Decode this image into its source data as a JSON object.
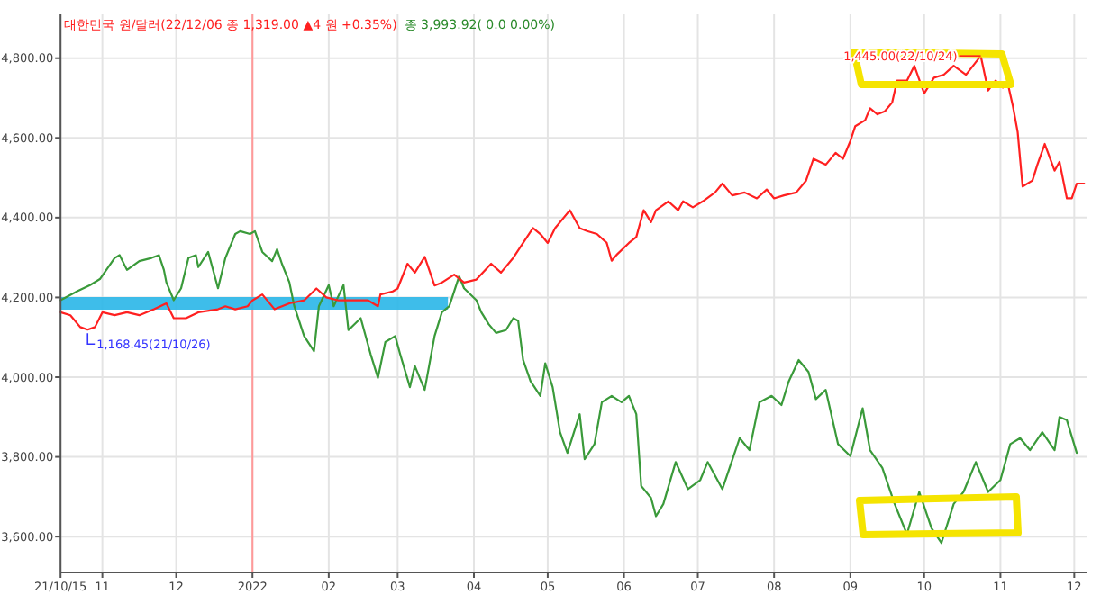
{
  "chart_data": {
    "type": "line",
    "title": "대한민국 원/달러(22/12/06 종 1,319.00 ▲4 원 +0.35%)",
    "subtitle": "종 3,993.92( 0.0 0.00%)",
    "y2lim": [
      923,
      1487
    ],
    "xlim": [
      "2021-10-15",
      "2022-12-06"
    ],
    "xticks": [
      {
        "value": "2021-10-15",
        "label": "21/10/15"
      },
      {
        "value": "2021-11-01",
        "label": "11"
      },
      {
        "value": "2021-12-01",
        "label": "12"
      },
      {
        "value": "2022-01-01",
        "label": "2022"
      },
      {
        "value": "2022-02-01",
        "label": "02"
      },
      {
        "value": "2022-03-01",
        "label": "03"
      },
      {
        "value": "2022-04-01",
        "label": "04"
      },
      {
        "value": "2022-05-01",
        "label": "05"
      },
      {
        "value": "2022-06-01",
        "label": "06"
      },
      {
        "value": "2022-07-01",
        "label": "07"
      },
      {
        "value": "2022-08-01",
        "label": "08"
      },
      {
        "value": "2022-09-01",
        "label": "09"
      },
      {
        "value": "2022-10-01",
        "label": "10"
      },
      {
        "value": "2022-11-01",
        "label": "11"
      },
      {
        "value": "2022-12-01",
        "label": "12"
      }
    ],
    "ylim": [
      3510,
      4910
    ],
    "yticks": [
      {
        "value": 3600,
        "label": "3,600.00"
      },
      {
        "value": 3800,
        "label": "3,800.00"
      },
      {
        "value": 4000,
        "label": "4,000.00"
      },
      {
        "value": 4200,
        "label": "4,200.00"
      },
      {
        "value": 4400,
        "label": "4,400.00"
      },
      {
        "value": 4600,
        "label": "4,600.00"
      },
      {
        "value": 4800,
        "label": "4,800.00"
      }
    ],
    "grid": true,
    "ref_lines": [
      {
        "axis": "x",
        "value": "2022-01-01",
        "color": "#ff9999"
      }
    ],
    "series": [
      {
        "color": "#3a9a3a",
        "x": [
          "2021-10-15",
          "2021-10-22",
          "2021-10-27",
          "2021-10-31",
          "2021-11-06",
          "2021-11-08",
          "2021-11-11",
          "2021-11-16",
          "2021-11-21",
          "2021-11-24",
          "2021-11-26",
          "2021-11-27",
          "2021-11-30",
          "2021-12-03",
          "2021-12-06",
          "2021-12-09",
          "2021-12-10",
          "2021-12-14",
          "2021-12-18",
          "2021-12-21",
          "2021-12-25",
          "2021-12-27",
          "2021-12-31",
          "2022-01-02",
          "2022-01-05",
          "2022-01-09",
          "2022-01-11",
          "2022-01-13",
          "2022-01-16",
          "2022-01-18",
          "2022-01-22",
          "2022-01-26",
          "2022-01-28",
          "2022-02-01",
          "2022-02-03",
          "2022-02-07",
          "2022-02-09",
          "2022-02-14",
          "2022-02-18",
          "2022-02-21",
          "2022-02-24",
          "2022-02-28",
          "2022-03-02",
          "2022-03-06",
          "2022-03-08",
          "2022-03-12",
          "2022-03-16",
          "2022-03-19",
          "2022-03-22",
          "2022-03-26",
          "2022-03-28",
          "2022-04-02",
          "2022-04-04",
          "2022-04-07",
          "2022-04-10",
          "2022-04-14",
          "2022-04-17",
          "2022-04-19",
          "2022-04-21",
          "2022-04-24",
          "2022-04-28",
          "2022-04-30",
          "2022-05-03",
          "2022-05-06",
          "2022-05-09",
          "2022-05-14",
          "2022-05-16",
          "2022-05-20",
          "2022-05-23",
          "2022-05-27",
          "2022-05-31",
          "2022-06-03",
          "2022-06-06",
          "2022-06-08",
          "2022-06-12",
          "2022-06-14",
          "2022-06-17",
          "2022-06-22",
          "2022-06-27",
          "2022-07-02",
          "2022-07-05",
          "2022-07-11",
          "2022-07-18",
          "2022-07-22",
          "2022-07-26",
          "2022-07-31",
          "2022-08-04",
          "2022-08-07",
          "2022-08-11",
          "2022-08-15",
          "2022-08-18",
          "2022-08-22",
          "2022-08-27",
          "2022-09-01",
          "2022-09-06",
          "2022-09-09",
          "2022-09-14",
          "2022-09-19",
          "2022-09-24",
          "2022-09-29",
          "2022-10-04",
          "2022-10-08",
          "2022-10-13",
          "2022-10-17",
          "2022-10-22",
          "2022-10-27",
          "2022-11-01",
          "2022-11-05",
          "2022-11-09",
          "2022-11-13",
          "2022-11-18",
          "2022-11-23",
          "2022-11-25",
          "2022-11-28",
          "2022-12-02"
        ],
        "values": [
          4193,
          4216,
          4231,
          4246,
          4299,
          4306,
          4269,
          4291,
          4299,
          4306,
          4269,
          4238,
          4193,
          4223,
          4299,
          4306,
          4276,
          4314,
          4223,
          4299,
          4359,
          4366,
          4359,
          4366,
          4314,
          4291,
          4321,
          4284,
          4238,
          4178,
          4103,
          4065,
          4178,
          4231,
          4178,
          4231,
          4118,
          4148,
          4058,
          3998,
          4088,
          4103,
          4058,
          3975,
          4028,
          3968,
          4103,
          4163,
          4178,
          4253,
          4223,
          4193,
          4163,
          4133,
          4111,
          4118,
          4148,
          4141,
          4043,
          3990,
          3953,
          4035,
          3975,
          3862,
          3810,
          3907,
          3794,
          3832,
          3937,
          3953,
          3937,
          3953,
          3907,
          3727,
          3697,
          3651,
          3682,
          3787,
          3719,
          3742,
          3787,
          3719,
          3847,
          3817,
          3937,
          3953,
          3930,
          3990,
          4043,
          4013,
          3945,
          3968,
          3832,
          3802,
          3922,
          3817,
          3772,
          3682,
          3606,
          3712,
          3621,
          3584,
          3682,
          3712,
          3787,
          3712,
          3742,
          3832,
          3847,
          3817,
          3862,
          3817,
          3900,
          3892,
          3810
        ]
      },
      {
        "color": "#ff2020",
        "axis": "y2",
        "x": [
          "2021-10-15",
          "2021-10-19",
          "2021-10-23",
          "2021-10-26",
          "2021-10-29",
          "2021-11-01",
          "2021-11-06",
          "2021-11-11",
          "2021-11-16",
          "2021-11-22",
          "2021-11-27",
          "2021-11-30",
          "2021-12-05",
          "2021-12-10",
          "2021-12-18",
          "2021-12-21",
          "2021-12-25",
          "2021-12-30",
          "2022-01-01",
          "2022-01-05",
          "2022-01-10",
          "2022-01-16",
          "2022-01-22",
          "2022-01-27",
          "2022-01-31",
          "2022-02-05",
          "2022-02-12",
          "2022-02-17",
          "2022-02-21",
          "2022-02-22",
          "2022-02-27",
          "2022-03-01",
          "2022-03-05",
          "2022-03-08",
          "2022-03-12",
          "2022-03-16",
          "2022-03-19",
          "2022-03-24",
          "2022-03-28",
          "2022-04-02",
          "2022-04-08",
          "2022-04-12",
          "2022-04-17",
          "2022-04-21",
          "2022-04-25",
          "2022-04-28",
          "2022-05-01",
          "2022-05-04",
          "2022-05-10",
          "2022-05-14",
          "2022-05-17",
          "2022-05-21",
          "2022-05-25",
          "2022-05-27",
          "2022-05-29",
          "2022-06-03",
          "2022-06-06",
          "2022-06-09",
          "2022-06-12",
          "2022-06-14",
          "2022-06-19",
          "2022-06-23",
          "2022-06-25",
          "2022-06-29",
          "2022-07-03",
          "2022-07-08",
          "2022-07-11",
          "2022-07-15",
          "2022-07-20",
          "2022-07-25",
          "2022-07-29",
          "2022-08-01",
          "2022-08-05",
          "2022-08-10",
          "2022-08-14",
          "2022-08-17",
          "2022-08-22",
          "2022-08-26",
          "2022-08-29",
          "2022-09-01",
          "2022-09-03",
          "2022-09-07",
          "2022-09-09",
          "2022-09-12",
          "2022-09-15",
          "2022-09-18",
          "2022-09-20",
          "2022-09-24",
          "2022-09-27",
          "2022-10-01",
          "2022-10-05",
          "2022-10-09",
          "2022-10-13",
          "2022-10-18",
          "2022-10-24",
          "2022-10-27",
          "2022-10-30",
          "2022-11-02",
          "2022-11-04",
          "2022-11-06",
          "2022-11-08",
          "2022-11-10",
          "2022-11-14",
          "2022-11-16",
          "2022-11-19",
          "2022-11-23",
          "2022-11-25",
          "2022-11-28",
          "2022-11-30",
          "2022-12-02",
          "2022-12-05"
        ],
        "values": [
          1186,
          1183,
          1171,
          1168.45,
          1171,
          1186,
          1183,
          1186,
          1183,
          1189,
          1195,
          1180,
          1180,
          1186,
          1189,
          1192,
          1189,
          1192,
          1198,
          1204,
          1189,
          1195,
          1198,
          1210,
          1201,
          1198,
          1198,
          1198,
          1192,
          1204,
          1207,
          1210,
          1235,
          1226,
          1242,
          1213,
          1216,
          1224,
          1216,
          1219,
          1235,
          1226,
          1241,
          1256,
          1271,
          1265,
          1256,
          1271,
          1289,
          1271,
          1268,
          1265,
          1256,
          1238,
          1244,
          1256,
          1262,
          1289,
          1277,
          1289,
          1298,
          1289,
          1298,
          1292,
          1298,
          1307,
          1316,
          1304,
          1307,
          1301,
          1310,
          1301,
          1304,
          1307,
          1319,
          1341,
          1335,
          1347,
          1341,
          1359,
          1374,
          1380,
          1392,
          1386,
          1389,
          1398,
          1420,
          1420,
          1435,
          1407,
          1423,
          1426,
          1435,
          1426,
          1445,
          1410,
          1420,
          1413,
          1417,
          1395,
          1368,
          1313,
          1319,
          1335,
          1356,
          1329,
          1338,
          1301,
          1301,
          1316,
          1316
        ],
        "value_labels": [
          null,
          null,
          null,
          "1,168.45(21/10/26)",
          null,
          null,
          null,
          null,
          null,
          null,
          null,
          null,
          null,
          null,
          null,
          null,
          null,
          null,
          null,
          null,
          null,
          null,
          null,
          null,
          null,
          null,
          null,
          null,
          null,
          null,
          null,
          null,
          null,
          null,
          null,
          null,
          null,
          null,
          null,
          null,
          null,
          null,
          null,
          null,
          null,
          null,
          null,
          null,
          null,
          null,
          null,
          null,
          null,
          null,
          null,
          null,
          null,
          null,
          null,
          null,
          null,
          null,
          null,
          null,
          null,
          null,
          null,
          null,
          null,
          null,
          null,
          null,
          null,
          null,
          null,
          null,
          null,
          null,
          null,
          null,
          null,
          null,
          null,
          null,
          null,
          null,
          null,
          null,
          null,
          null,
          null,
          null,
          null,
          null,
          "1,445.00(22/10/24)",
          null,
          null,
          null,
          null,
          null,
          null,
          null,
          null,
          null,
          null,
          null,
          null,
          null,
          null,
          null,
          null
        ]
      }
    ]
  }
}
